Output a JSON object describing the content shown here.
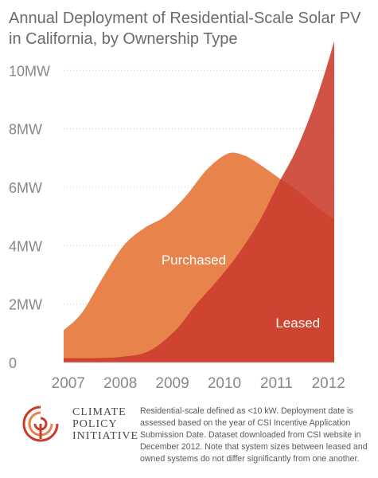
{
  "chart_data": {
    "type": "area",
    "title": "Annual Deployment of Residential-Scale Solar PV in California, by Ownership Type",
    "x": [
      2007,
      2008,
      2009,
      2010,
      2011,
      2012
    ],
    "xlim": [
      2006.85,
      2012.05
    ],
    "ylim": [
      0,
      10.5
    ],
    "yticks": [
      0,
      2,
      4,
      6,
      8,
      10
    ],
    "ytick_labels": [
      "0",
      "2MW",
      "4MW",
      "6MW",
      "8MW",
      "10MW"
    ],
    "xtick_labels": [
      "2007",
      "2008",
      "2009",
      "2010",
      "2011",
      "2012"
    ],
    "grid": true,
    "series": [
      {
        "name": "Purchased",
        "color": "#e8834c",
        "x": [
          2006.85,
          2007.2,
          2007.6,
          2008.0,
          2008.4,
          2008.8,
          2009.2,
          2009.6,
          2010.0,
          2010.3,
          2010.6,
          2011.0,
          2011.4,
          2011.8,
          2012.05
        ],
        "values": [
          1.1,
          1.7,
          2.9,
          4.0,
          4.6,
          5.0,
          5.7,
          6.6,
          7.15,
          7.1,
          6.8,
          6.3,
          5.8,
          5.2,
          4.9
        ]
      },
      {
        "name": "Leased",
        "color": "#c93b2c",
        "x": [
          2006.85,
          2007.5,
          2008.0,
          2008.5,
          2009.0,
          2009.4,
          2009.8,
          2010.2,
          2010.6,
          2011.0,
          2011.3,
          2011.6,
          2011.85,
          2012.05
        ],
        "values": [
          0.15,
          0.15,
          0.2,
          0.4,
          1.1,
          2.0,
          2.8,
          3.7,
          4.8,
          6.2,
          7.2,
          8.5,
          9.8,
          11.0
        ]
      }
    ],
    "annotations": [
      {
        "text": "Purchased",
        "x": 2009.35,
        "y": 3.35
      },
      {
        "text": "Leased",
        "x": 2011.35,
        "y": 1.2
      }
    ]
  },
  "footer": {
    "logo_line1": "CLIMATE",
    "logo_line2": "POLICY",
    "logo_line3": "INITIATIVE",
    "note": "Residential-scale defined as <10 kW. Deployment date is assessed based on the year of CSI Incentive Application Submission Date. Dataset downloaded from CSI website in December 2012. Note that system sizes between leased and owned systems do not differ significantly from one another."
  }
}
